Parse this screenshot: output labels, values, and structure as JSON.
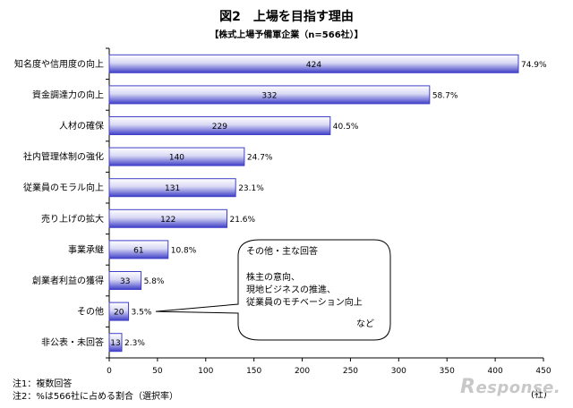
{
  "header": {
    "title": "図2　上場を目指す理由",
    "subtitle": "【株式上場予備軍企業（n=566社）】"
  },
  "chart_data": {
    "type": "bar",
    "orientation": "horizontal",
    "categories": [
      "知名度や信用度の向上",
      "資金調達力の向上",
      "人材の確保",
      "社内管理体制の強化",
      "従業員のモラル向上",
      "売り上げの拡大",
      "事業承継",
      "創業者利益の獲得",
      "その他",
      "非公表・未回答"
    ],
    "values": [
      424,
      332,
      229,
      140,
      131,
      122,
      61,
      33,
      20,
      13
    ],
    "value_labels": [
      "424",
      "332",
      "229",
      "140",
      "131",
      "122",
      "61",
      "33",
      "20",
      "13"
    ],
    "percent_labels": [
      "74.9%",
      "58.7%",
      "40.5%",
      "24.7%",
      "23.1%",
      "21.6%",
      "10.8%",
      "5.8%",
      "3.5%",
      "2.3%"
    ],
    "xlim": [
      0,
      450
    ],
    "x_ticks": [
      "0",
      "50",
      "100",
      "150",
      "200",
      "250",
      "300",
      "350",
      "400",
      "450"
    ],
    "x_unit": "(社)",
    "bar_color": "#4040c8",
    "grid": false
  },
  "callout": {
    "heading": "その他・主な回答",
    "lines": [
      "株主の意向、",
      "現地ビジネスの推進、",
      "従業員のモチベーション向上"
    ],
    "footer": "など"
  },
  "notes": [
    "注1：複数回答",
    "注2：%は566社に占める割合（選択率）"
  ],
  "watermark": {
    "initial": "R",
    "rest": "esponse."
  }
}
